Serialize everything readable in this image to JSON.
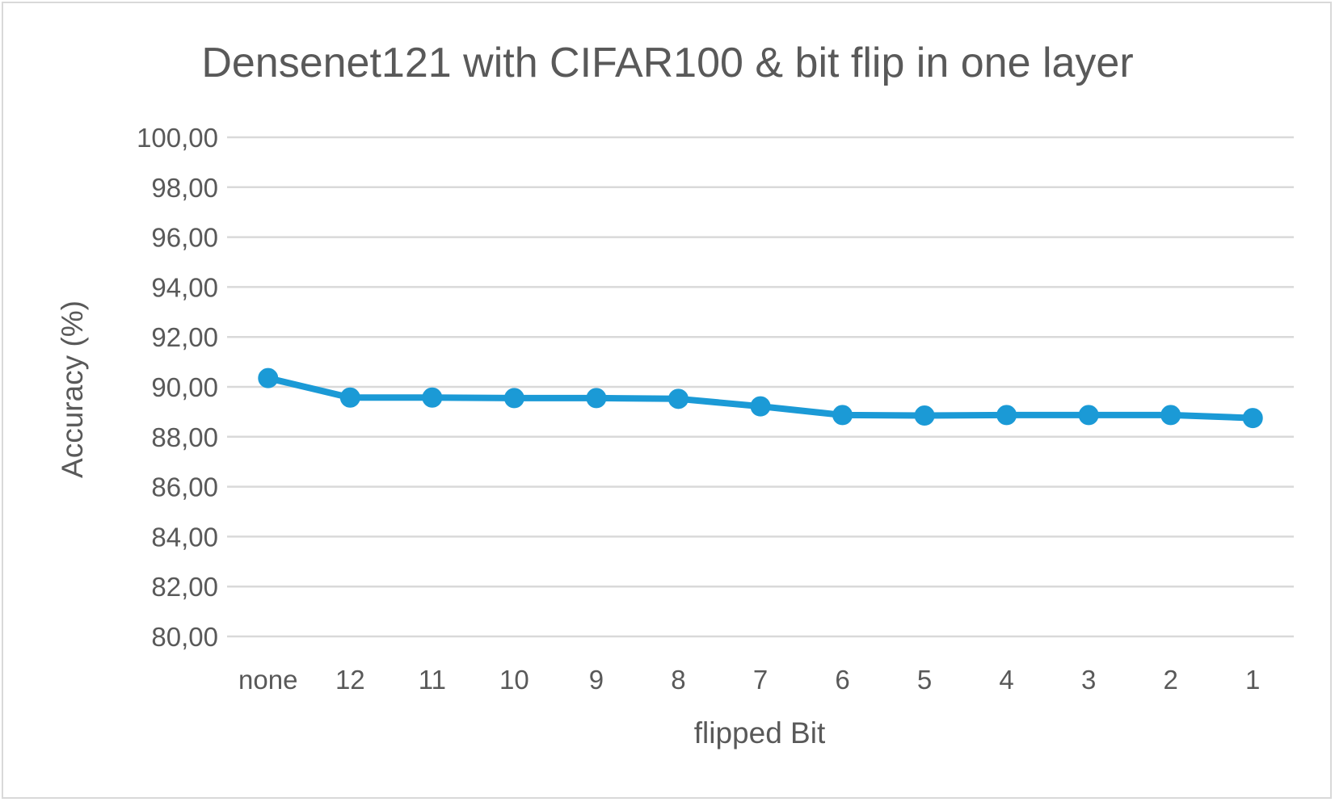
{
  "chart_data": {
    "type": "line",
    "title": "Densenet121 with CIFAR100 & bit flip in one layer",
    "xlabel": "flipped Bit",
    "ylabel": "Accuracy (%)",
    "categories": [
      "none",
      "12",
      "11",
      "10",
      "9",
      "8",
      "7",
      "6",
      "5",
      "4",
      "3",
      "2",
      "1"
    ],
    "series": [
      {
        "values": [
          90.35,
          89.57,
          89.57,
          89.55,
          89.55,
          89.52,
          89.22,
          88.87,
          88.85,
          88.87,
          88.87,
          88.87,
          88.75
        ],
        "color": "#1b9ad6"
      }
    ],
    "ylim": [
      80,
      100
    ],
    "yticks": [
      "80,00",
      "82,00",
      "84,00",
      "86,00",
      "88,00",
      "90,00",
      "92,00",
      "94,00",
      "96,00",
      "98,00",
      "100,00"
    ],
    "grid": true,
    "legend": "none"
  }
}
